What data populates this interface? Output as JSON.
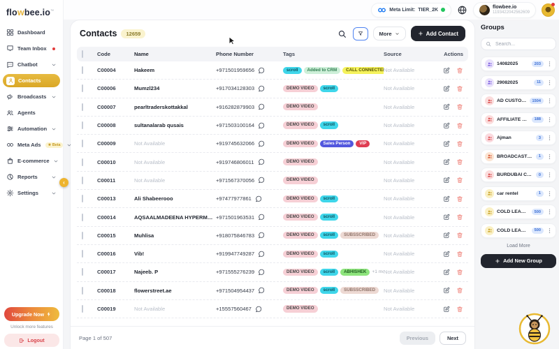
{
  "topbar": {
    "meta_limit_label": "Meta Limit:",
    "meta_limit_value": "TIER_2K",
    "account_name": "flowbee.io",
    "account_id": "1193422042562609"
  },
  "sidebar": {
    "logo": {
      "part1": "flo",
      "part2": "w",
      "part3": "bee.io",
      "tm": "™"
    },
    "items": [
      {
        "label": "Dashboard",
        "icon": "dashboard-icon"
      },
      {
        "label": "Team Inbox",
        "icon": "inbox-icon",
        "dot": true
      },
      {
        "label": "Chatbot",
        "icon": "chatbot-icon",
        "chevron": true
      },
      {
        "label": "Contacts",
        "icon": "contacts-icon",
        "active": true
      },
      {
        "label": "Broadcasts",
        "icon": "broadcast-icon",
        "chevron": true
      },
      {
        "label": "Agents",
        "icon": "agents-icon"
      },
      {
        "label": "Automation",
        "icon": "automation-icon",
        "chevron": true
      },
      {
        "label": "Meta Ads",
        "icon": "meta-icon",
        "badge": "Beta",
        "chevron": true
      },
      {
        "label": "E-commerce",
        "icon": "ecommerce-icon",
        "chevron": true
      },
      {
        "label": "Reports",
        "icon": "reports-icon",
        "chevron": true
      },
      {
        "label": "Settings",
        "icon": "settings-icon",
        "chevron": true
      }
    ],
    "upgrade_label": "Upgrade Now",
    "upgrade_subtext": "Unlock more features",
    "logout_label": "Logout"
  },
  "contacts": {
    "title": "Contacts",
    "count_badge": "12659",
    "toolbar": {
      "more_label": "More",
      "add_label": "Add Contact"
    },
    "table": {
      "headers": [
        "Code",
        "Name",
        "Phone Number",
        "Tags",
        "Source",
        "Actions"
      ],
      "not_available": "Not Available",
      "rows": [
        {
          "code": "C00004",
          "name": "Hakeem",
          "phone": "+971501959656",
          "tags": [
            {
              "label": "scroll",
              "color": "cyan"
            },
            {
              "label": "Added to CRM",
              "color": "green"
            },
            {
              "label": "CALL CONNECTED",
              "color": "yellow"
            }
          ],
          "extra": "+1 more",
          "source": "Not Available"
        },
        {
          "code": "C00006",
          "name": "Mumzl234",
          "phone": "+917034128303",
          "tags": [
            {
              "label": "DEMO VIDEO",
              "color": "pink"
            },
            {
              "label": "scroll",
              "color": "cyan"
            }
          ],
          "source": "Not Available"
        },
        {
          "code": "C00007",
          "name": "pearltraderskottakkal",
          "phone": "+916282879903",
          "tags": [
            {
              "label": "DEMO VIDEO",
              "color": "pink"
            }
          ],
          "source": "Not Available"
        },
        {
          "code": "C00008",
          "name": "sultanalarab qusais",
          "phone": "+971503100164",
          "tags": [
            {
              "label": "DEMO VIDEO",
              "color": "pink"
            },
            {
              "label": "scroll",
              "color": "cyan"
            }
          ],
          "source": "Not Available"
        },
        {
          "code": "C00009",
          "name": "Not Available",
          "name_missing": true,
          "phone": "+919745632066",
          "tags": [
            {
              "label": "DEMO VIDEO",
              "color": "pink"
            },
            {
              "label": "Sales Person",
              "color": "indigo"
            },
            {
              "label": "VIP",
              "color": "red"
            }
          ],
          "source": "Not Available"
        },
        {
          "code": "C00010",
          "name": "Not Available",
          "name_missing": true,
          "phone": "+919746806011",
          "tags": [
            {
              "label": "DEMO VIDEO",
              "color": "pink"
            }
          ],
          "source": "Not Available"
        },
        {
          "code": "C00011",
          "name": "Not Available",
          "name_missing": true,
          "phone": "+971567370056",
          "tags": [
            {
              "label": "DEMO VIDEO",
              "color": "pink"
            }
          ],
          "source": "Not Available"
        },
        {
          "code": "C00013",
          "name": "Ali Shabeerooo",
          "phone": "+97477977861",
          "tags": [
            {
              "label": "DEMO VIDEO",
              "color": "pink"
            },
            {
              "label": "scroll",
              "color": "cyan"
            }
          ],
          "source": "Not Available"
        },
        {
          "code": "C00014",
          "name": "AQSAALMADEENA HYPERMARKET",
          "phone": "+971501963531",
          "tags": [
            {
              "label": "DEMO VIDEO",
              "color": "pink"
            },
            {
              "label": "scroll",
              "color": "cyan"
            }
          ],
          "source": "Not Available"
        },
        {
          "code": "C00015",
          "name": "Muhlisa",
          "phone": "+918075846783",
          "tags": [
            {
              "label": "DEMO VIDEO",
              "color": "pink"
            },
            {
              "label": "scroll",
              "color": "cyan"
            },
            {
              "label": "SUBSSCRIBED",
              "color": "tan"
            }
          ],
          "source": "Not Available"
        },
        {
          "code": "C00016",
          "name": "Vib!",
          "phone": "+919947749287",
          "tags": [
            {
              "label": "DEMO VIDEO",
              "color": "pink"
            },
            {
              "label": "scroll",
              "color": "cyan"
            }
          ],
          "source": "Not Available"
        },
        {
          "code": "C00017",
          "name": "Najeeb. P",
          "phone": "+971555276239",
          "tags": [
            {
              "label": "DEMO VIDEO",
              "color": "pink"
            },
            {
              "label": "scroll",
              "color": "cyan"
            },
            {
              "label": "ABHISHEK",
              "color": "lime"
            }
          ],
          "extra": "+1 more",
          "source": "Not Available"
        },
        {
          "code": "C00018",
          "name": "flowerstreet.ae",
          "phone": "+971504954437",
          "tags": [
            {
              "label": "DEMO VIDEO",
              "color": "pink"
            },
            {
              "label": "scroll",
              "color": "cyan"
            },
            {
              "label": "SUBSSCRIBED",
              "color": "tan"
            }
          ],
          "source": "Not Available"
        },
        {
          "code": "C00019",
          "name": "Not Available",
          "name_missing": true,
          "phone": "+15557560467",
          "tags": [
            {
              "label": "DEMO VIDEO",
              "color": "pink"
            }
          ],
          "source": "Not Available"
        }
      ]
    },
    "pagination": {
      "page_label": "Page 1 of 507",
      "previous_label": "Previous",
      "next_label": "Next"
    }
  },
  "groups": {
    "title": "Groups",
    "search_placeholder": "Search...",
    "items": [
      {
        "name": "14082025",
        "count": "203",
        "color": "purple"
      },
      {
        "name": "29082025",
        "count": "11",
        "color": "purple"
      },
      {
        "name": "AD CUSTOME...",
        "count": "1504",
        "color": "red"
      },
      {
        "name": "AFFILIATE PART...",
        "count": "188",
        "color": "red"
      },
      {
        "name": "Ajman",
        "count": "3",
        "color": "pink"
      },
      {
        "name": "BROADCAST 020...",
        "count": "1",
        "color": "orange"
      },
      {
        "name": "BURDUBAI CUST...",
        "count": "0",
        "color": "red"
      },
      {
        "name": "car rentel",
        "count": "1",
        "color": "yellow"
      },
      {
        "name": "COLD LEAD 091...",
        "count": "500",
        "color": "yellow"
      },
      {
        "name": "COLD LEAD 091...",
        "count": "500",
        "color": "yellow"
      }
    ],
    "load_more_label": "Load More",
    "add_label": "Add New Group"
  },
  "colors": {
    "accent_gold": "#E4B33C",
    "status_green": "#22C55E",
    "tag": {
      "cyan": {
        "bg": "#3FD6EA",
        "fg": "#0B4E5A"
      },
      "green": {
        "bg": "#CDEFD8",
        "fg": "#2E7D4F"
      },
      "yellow": {
        "bg": "#F5F25C",
        "fg": "#565200"
      },
      "pink": {
        "bg": "#F6CFD5",
        "fg": "#4A4A4A"
      },
      "indigo": {
        "bg": "#5257DE",
        "fg": "#FFFFFF"
      },
      "red": {
        "bg": "#DF3D52",
        "fg": "#FFFFFF"
      },
      "tan": {
        "bg": "#EDD9D3",
        "fg": "#91766C"
      },
      "lime": {
        "bg": "#8EE57D",
        "fg": "#1F5C1F"
      }
    },
    "group_avatar": {
      "purple": {
        "bg": "#E9E2FB",
        "fg": "#7C5CE0"
      },
      "red": {
        "bg": "#FBDCDC",
        "fg": "#D84444"
      },
      "pink": {
        "bg": "#FADADF",
        "fg": "#E05555"
      },
      "orange": {
        "bg": "#FBE4D2",
        "fg": "#D8542F"
      },
      "yellow": {
        "bg": "#FAF0C4",
        "fg": "#C9A227"
      }
    },
    "count_badge": {
      "bg": "#DBE7FD",
      "fg": "#3B6FD4"
    }
  }
}
